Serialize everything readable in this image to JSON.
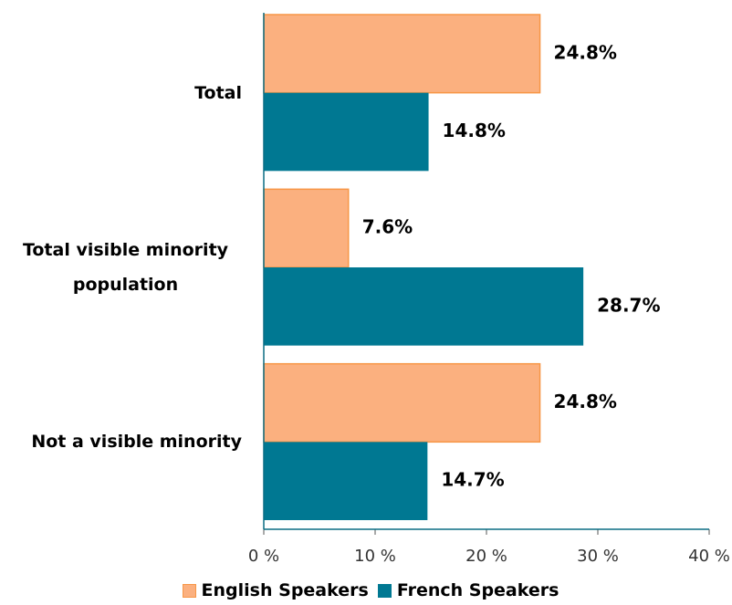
{
  "chart_data": {
    "type": "barh",
    "categories": [
      "Total",
      "Total visible minority population",
      "Not a visible minority"
    ],
    "series": [
      {
        "name": "English Speakers",
        "color": "#fbb07f",
        "edge": "#f79646",
        "values": [
          24.8,
          7.6,
          24.8
        ],
        "value_labels": [
          "24.8%",
          "7.6%",
          "24.8%"
        ]
      },
      {
        "name": "French Speakers",
        "color": "#007892",
        "values": [
          14.8,
          28.7,
          14.7
        ],
        "value_labels": [
          "14.8%",
          "28.7%",
          "14.7%"
        ]
      }
    ],
    "xlim": [
      0,
      40
    ],
    "xticks": [
      {
        "value": 0,
        "label": "0 %"
      },
      {
        "value": 10,
        "label": "10 %"
      },
      {
        "value": 20,
        "label": "20 %"
      },
      {
        "value": 30,
        "label": "30 %"
      },
      {
        "value": 40,
        "label": "40 %"
      }
    ],
    "legend": "bottom"
  }
}
